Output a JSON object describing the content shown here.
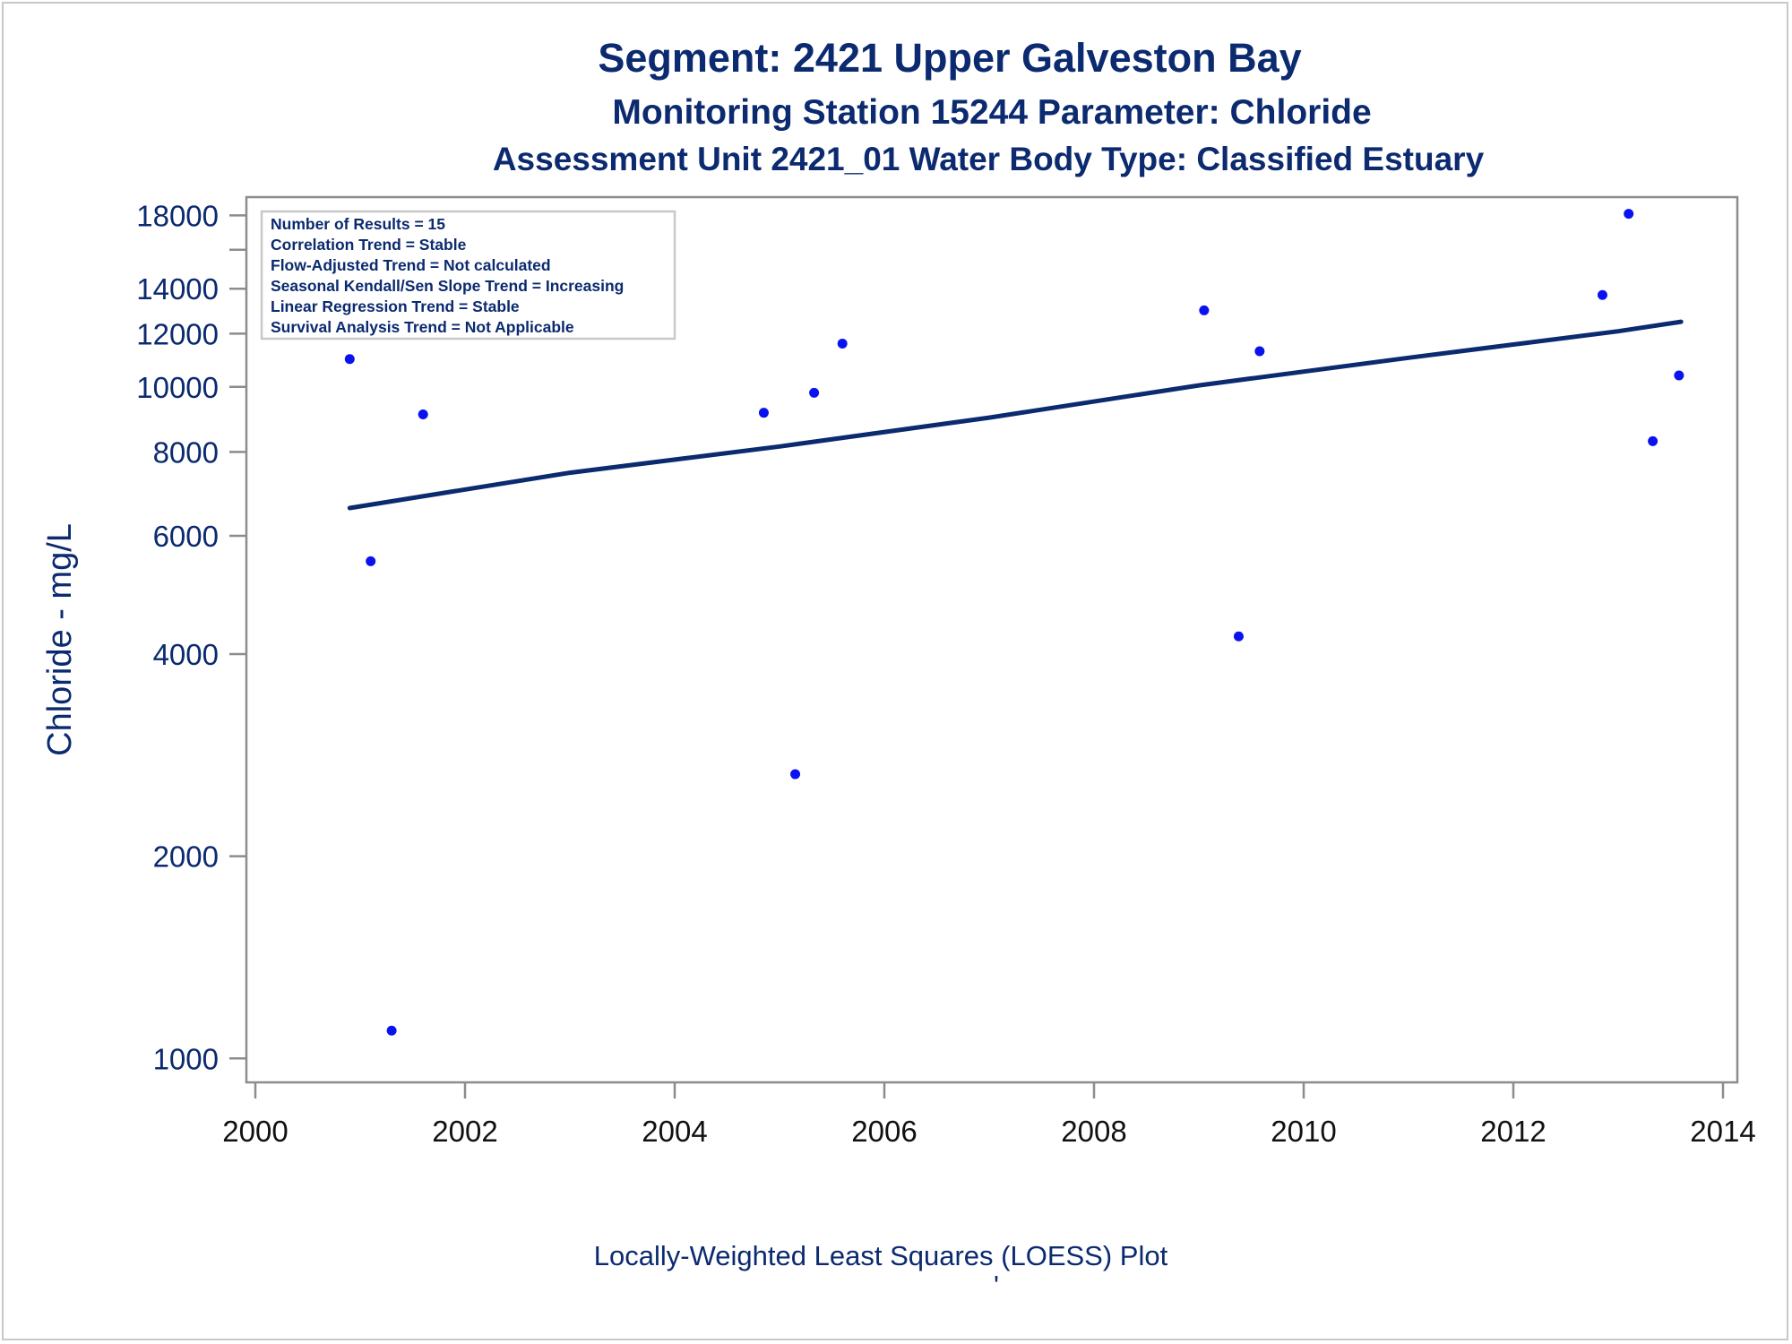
{
  "titles": {
    "line1": "Segment: 2421  Upper Galveston Bay",
    "line2": "Monitoring Station 15244 Parameter: Chloride",
    "line3": "Assessment Unit 2421_01   Water Body Type: Classified Estuary"
  },
  "footnote": "Locally-Weighted Least Squares (LOESS) Plot",
  "footnote_mark": "'",
  "stats_box": [
    "Number of Results = 15",
    "Correlation Trend = Stable",
    "Flow-Adjusted Trend = Not calculated",
    "Seasonal Kendall/Sen Slope Trend = Increasing",
    "Linear Regression Trend = Stable",
    "Survival Analysis Trend = Not Applicable"
  ],
  "colors": {
    "points": "#0b12f0",
    "trend_line": "#0b2a6f",
    "text": "#0b2a6f",
    "axis": "#8c8c8c"
  },
  "chart_data": {
    "type": "scatter",
    "ylabel": "Chloride - mg/L",
    "xlabel": "",
    "y_scale": "log",
    "xlim": [
      2000,
      2014
    ],
    "ylim": [
      950,
      18700
    ],
    "x_ticks": [
      "2000",
      "2002",
      "2004",
      "2006",
      "2008",
      "2010",
      "2012",
      "2014"
    ],
    "y_ticks": [
      "1000",
      "2000",
      "4000",
      "6000",
      "8000",
      "10000",
      "12000",
      "14000",
      "18000"
    ],
    "y_minor_ticks": [
      16000
    ],
    "points": [
      {
        "x": 2000.9,
        "y": 11000
      },
      {
        "x": 2001.1,
        "y": 5500
      },
      {
        "x": 2001.3,
        "y": 1100
      },
      {
        "x": 2001.6,
        "y": 9100
      },
      {
        "x": 2004.85,
        "y": 9150
      },
      {
        "x": 2005.15,
        "y": 2650
      },
      {
        "x": 2005.33,
        "y": 9800
      },
      {
        "x": 2005.6,
        "y": 11600
      },
      {
        "x": 2009.05,
        "y": 13000
      },
      {
        "x": 2009.38,
        "y": 4250
      },
      {
        "x": 2009.58,
        "y": 11300
      },
      {
        "x": 2012.85,
        "y": 13700
      },
      {
        "x": 2013.1,
        "y": 18100
      },
      {
        "x": 2013.33,
        "y": 8300
      },
      {
        "x": 2013.58,
        "y": 10400
      }
    ],
    "trend_line": [
      {
        "x": 2000.9,
        "y": 6600
      },
      {
        "x": 2003.0,
        "y": 7450
      },
      {
        "x": 2005.0,
        "y": 8150
      },
      {
        "x": 2007.0,
        "y": 9000
      },
      {
        "x": 2009.0,
        "y": 10050
      },
      {
        "x": 2011.0,
        "y": 11050
      },
      {
        "x": 2013.0,
        "y": 12100
      },
      {
        "x": 2013.6,
        "y": 12500
      }
    ]
  }
}
